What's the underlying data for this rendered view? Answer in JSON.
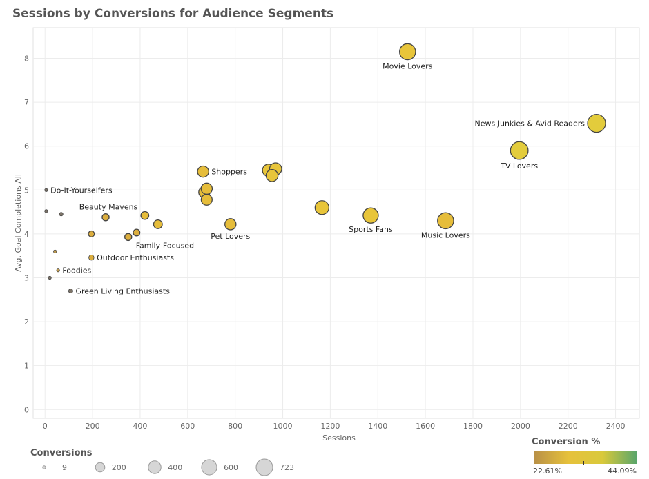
{
  "chart_data": {
    "type": "scatter",
    "title": "Sessions by Conversions for Audience Segments",
    "xlabel": "Sessions",
    "ylabel": "Avg. Goal Completions All",
    "xlim": [
      -50,
      2500
    ],
    "ylim": [
      -0.2,
      8.7
    ],
    "xticks": [
      0,
      200,
      400,
      600,
      800,
      1000,
      1200,
      1400,
      1600,
      1800,
      2000,
      2200,
      2400
    ],
    "yticks": [
      0,
      1,
      2,
      3,
      4,
      5,
      6,
      7,
      8
    ],
    "grid": true,
    "points": [
      {
        "label": "Movie Lovers",
        "x": 1525,
        "y": 8.15,
        "conversions": 580,
        "conversion_pct": 32,
        "label_pos": "below"
      },
      {
        "label": "News Junkies & Avid Readers",
        "x": 2320,
        "y": 6.52,
        "conversions": 723,
        "conversion_pct": 34,
        "label_pos": "left"
      },
      {
        "label": "TV Lovers",
        "x": 1995,
        "y": 5.9,
        "conversions": 700,
        "conversion_pct": 33,
        "label_pos": "below"
      },
      {
        "label": "Shoppers",
        "x": 665,
        "y": 5.42,
        "conversions": 280,
        "conversion_pct": 30,
        "label_pos": "right"
      },
      {
        "label": "",
        "x": 940,
        "y": 5.45,
        "conversions": 330,
        "conversion_pct": 31
      },
      {
        "label": "",
        "x": 970,
        "y": 5.48,
        "conversions": 330,
        "conversion_pct": 31
      },
      {
        "label": "",
        "x": 955,
        "y": 5.33,
        "conversions": 320,
        "conversion_pct": 31
      },
      {
        "label": "",
        "x": 670,
        "y": 4.95,
        "conversions": 280,
        "conversion_pct": 30
      },
      {
        "label": "",
        "x": 680,
        "y": 5.03,
        "conversions": 280,
        "conversion_pct": 30
      },
      {
        "label": "",
        "x": 680,
        "y": 4.78,
        "conversions": 270,
        "conversion_pct": 30
      },
      {
        "label": "Pet Lovers",
        "x": 780,
        "y": 4.22,
        "conversions": 280,
        "conversion_pct": 29,
        "label_pos": "below"
      },
      {
        "label": "",
        "x": 1165,
        "y": 4.6,
        "conversions": 430,
        "conversion_pct": 31
      },
      {
        "label": "Sports Fans",
        "x": 1370,
        "y": 4.42,
        "conversions": 520,
        "conversion_pct": 32,
        "label_pos": "below"
      },
      {
        "label": "Music Lovers",
        "x": 1685,
        "y": 4.3,
        "conversions": 580,
        "conversion_pct": 30,
        "label_pos": "below"
      },
      {
        "label": "Do-It-Yourselfers",
        "x": 5,
        "y": 5.0,
        "conversions": 9,
        "conversion_pct": 23,
        "label_pos": "right"
      },
      {
        "label": "",
        "x": 5,
        "y": 4.52,
        "conversions": 9,
        "conversion_pct": 23
      },
      {
        "label": "",
        "x": 68,
        "y": 4.45,
        "conversions": 30,
        "conversion_pct": 24
      },
      {
        "label": "Beauty Mavens",
        "x": 255,
        "y": 4.38,
        "conversions": 110,
        "conversion_pct": 28,
        "label_pos": "above"
      },
      {
        "label": "",
        "x": 420,
        "y": 4.42,
        "conversions": 140,
        "conversion_pct": 29
      },
      {
        "label": "",
        "x": 475,
        "y": 4.22,
        "conversions": 170,
        "conversion_pct": 29
      },
      {
        "label": "",
        "x": 195,
        "y": 4.0,
        "conversions": 80,
        "conversion_pct": 28
      },
      {
        "label": "",
        "x": 385,
        "y": 4.03,
        "conversions": 100,
        "conversion_pct": 28
      },
      {
        "label": "Family-Focused",
        "x": 350,
        "y": 3.93,
        "conversions": 110,
        "conversion_pct": 28,
        "label_pos": "below-right"
      },
      {
        "label": "",
        "x": 42,
        "y": 3.6,
        "conversions": 15,
        "conversion_pct": 26
      },
      {
        "label": "Outdoor Enthusiasts",
        "x": 195,
        "y": 3.46,
        "conversions": 60,
        "conversion_pct": 27,
        "label_pos": "right"
      },
      {
        "label": "Foodies",
        "x": 55,
        "y": 3.17,
        "conversions": 20,
        "conversion_pct": 25,
        "label_pos": "right"
      },
      {
        "label": "",
        "x": 20,
        "y": 3.0,
        "conversions": 9,
        "conversion_pct": 23
      },
      {
        "label": "Green Living Enthusiasts",
        "x": 108,
        "y": 2.7,
        "conversions": 40,
        "conversion_pct": 24,
        "label_pos": "right"
      }
    ],
    "size_legend": {
      "title": "Conversions",
      "entries": [
        9,
        200,
        400,
        600,
        723
      ]
    },
    "color_legend": {
      "title": "Conversion %",
      "min_label": "22.61%",
      "max_label": "44.09%",
      "colors": [
        "#b99147",
        "#e6c13b",
        "#d9c93b",
        "#5aa66a"
      ]
    }
  }
}
